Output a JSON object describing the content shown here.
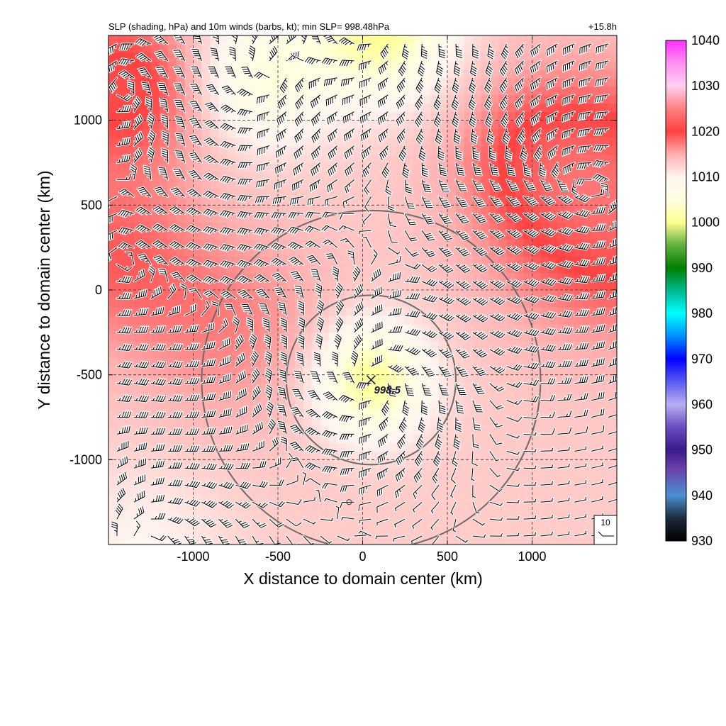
{
  "chart_data": {
    "type": "heatmap",
    "title": "SLP (shading, hPa) and 10m winds (barbs, kt); min SLP= 998.48hPa",
    "time_label": "+15.8h",
    "xlabel": "X distance to domain center (km)",
    "ylabel": "Y distance to domain center (km)",
    "xlim": [
      -1500,
      1500
    ],
    "ylim": [
      -1500,
      1500
    ],
    "x_ticks": [
      -1000,
      -500,
      0,
      500,
      1000
    ],
    "y_ticks": [
      1000,
      500,
      0,
      -500,
      -1000
    ],
    "grid": "dashed",
    "colorbar": {
      "min": 930,
      "max": 1040,
      "ticks": [
        1040,
        1030,
        1020,
        1010,
        1000,
        990,
        980,
        970,
        960,
        950,
        940,
        930
      ],
      "stops": [
        {
          "value": 930,
          "color": "#000000"
        },
        {
          "value": 935,
          "color": "#1c2b3c"
        },
        {
          "value": 940,
          "color": "#4a90d0"
        },
        {
          "value": 946,
          "color": "#6b3fa8"
        },
        {
          "value": 950,
          "color": "#3a1a8a"
        },
        {
          "value": 955,
          "color": "#6a4cc0"
        },
        {
          "value": 960,
          "color": "#b8b0f0"
        },
        {
          "value": 965,
          "color": "#5a5af0"
        },
        {
          "value": 970,
          "color": "#0000ff"
        },
        {
          "value": 975,
          "color": "#0090ff"
        },
        {
          "value": 980,
          "color": "#00ffff"
        },
        {
          "value": 985,
          "color": "#00b890"
        },
        {
          "value": 990,
          "color": "#008000"
        },
        {
          "value": 995,
          "color": "#60b040"
        },
        {
          "value": 1000,
          "color": "#ffff90"
        },
        {
          "value": 1005,
          "color": "#ffffe0"
        },
        {
          "value": 1010,
          "color": "#fff5f0"
        },
        {
          "value": 1015,
          "color": "#ffb0b0"
        },
        {
          "value": 1020,
          "color": "#ff4040"
        },
        {
          "value": 1025,
          "color": "#ff8080"
        },
        {
          "value": 1030,
          "color": "#ffd0f0"
        },
        {
          "value": 1035,
          "color": "#ff90f0"
        },
        {
          "value": 1040,
          "color": "#ff30ff"
        }
      ]
    },
    "min_slp_marker": {
      "x": 50,
      "y": -530,
      "label": "998.5"
    },
    "radius_circles_km": [
      500,
      1000
    ],
    "circle_center": {
      "x": 50,
      "y": -530
    },
    "small_marker": {
      "x": -80,
      "y": -1250
    },
    "wind_key": {
      "label": "10"
    },
    "slp_field": {
      "background": 1013,
      "features": [
        {
          "type": "low",
          "x": 50,
          "y": -530,
          "depth": 13,
          "radius": 320
        },
        {
          "type": "low",
          "x": 100,
          "y": 1550,
          "depth": 13,
          "radius": 400
        },
        {
          "type": "low",
          "x": -600,
          "y": 1250,
          "depth": 8,
          "radius": 400
        },
        {
          "type": "high",
          "x": 1500,
          "y": 500,
          "depth": 10,
          "radius": 700
        },
        {
          "type": "high",
          "x": 1000,
          "y": 800,
          "depth": 4,
          "radius": 450
        },
        {
          "type": "high",
          "x": -1400,
          "y": 1200,
          "depth": 8,
          "radius": 500
        },
        {
          "type": "high",
          "x": -1500,
          "y": 200,
          "depth": 5,
          "radius": 500
        },
        {
          "type": "high",
          "x": -800,
          "y": -200,
          "depth": 4,
          "radius": 600
        },
        {
          "type": "low",
          "x": -1300,
          "y": -1500,
          "depth": 3,
          "radius": 500
        }
      ]
    }
  }
}
